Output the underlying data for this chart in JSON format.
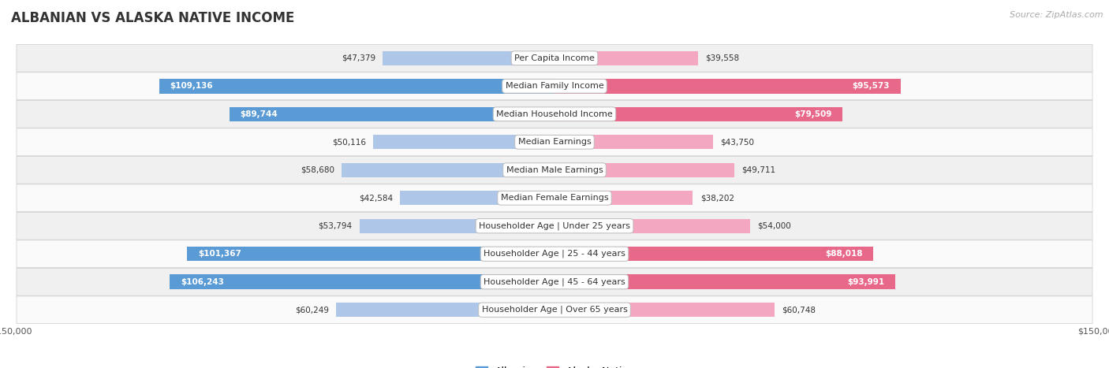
{
  "title": "ALBANIAN VS ALASKA NATIVE INCOME",
  "source": "Source: ZipAtlas.com",
  "categories": [
    "Per Capita Income",
    "Median Family Income",
    "Median Household Income",
    "Median Earnings",
    "Median Male Earnings",
    "Median Female Earnings",
    "Householder Age | Under 25 years",
    "Householder Age | 25 - 44 years",
    "Householder Age | 45 - 64 years",
    "Householder Age | Over 65 years"
  ],
  "albanian_values": [
    47379,
    109136,
    89744,
    50116,
    58680,
    42584,
    53794,
    101367,
    106243,
    60249
  ],
  "alaska_values": [
    39558,
    95573,
    79509,
    43750,
    49711,
    38202,
    54000,
    88018,
    93991,
    60748
  ],
  "albanian_color_light": "#aec6e8",
  "albanian_color_dark": "#5b9bd5",
  "alaska_color_light": "#f4a7c0",
  "alaska_color_dark": "#e8688a",
  "bar_height": 0.52,
  "max_value": 150000,
  "bg_color": "#ffffff",
  "row_bg_odd": "#f0f0f0",
  "row_bg_even": "#fafafa",
  "title_fontsize": 12,
  "label_fontsize": 8,
  "value_fontsize": 7.5,
  "legend_fontsize": 9,
  "source_fontsize": 8,
  "dark_threshold": 63000
}
